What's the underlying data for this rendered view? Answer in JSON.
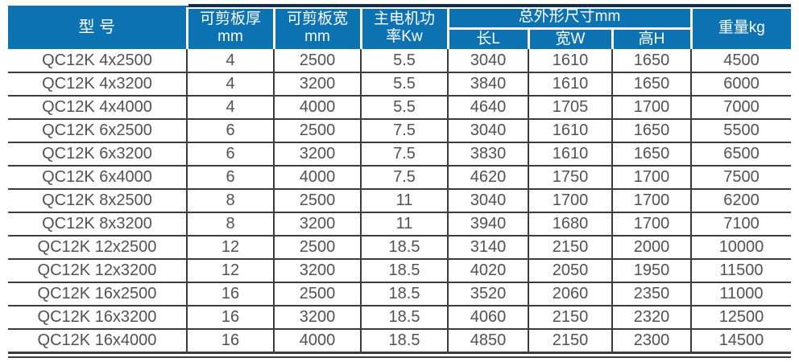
{
  "chart_data": {
    "type": "table",
    "header": {
      "model": "型 号",
      "thickness_l1": "可剪板厚",
      "thickness_l2": "mm",
      "width_l1": "可剪板宽",
      "width_l2": "mm",
      "power_l1": "主电机功",
      "power_l2": "率Kw",
      "dims_group": "总外形尺寸mm",
      "dim_length": "长L",
      "dim_width": "宽W",
      "dim_height": "高H",
      "weight": "重量kg"
    },
    "columns": [
      "型 号",
      "可剪板厚mm",
      "可剪板宽mm",
      "主电机功率Kw",
      "长L",
      "宽W",
      "高H",
      "重量kg"
    ],
    "rows": [
      [
        "QC12K 4x2500",
        "4",
        "2500",
        "5.5",
        "3040",
        "1610",
        "1650",
        "4500"
      ],
      [
        "QC12K 4x3200",
        "4",
        "3200",
        "5.5",
        "3840",
        "1610",
        "1650",
        "6000"
      ],
      [
        "QC12K 4x4000",
        "4",
        "4000",
        "5.5",
        "4640",
        "1705",
        "1700",
        "7000"
      ],
      [
        "QC12K 6x2500",
        "6",
        "2500",
        "7.5",
        "3040",
        "1610",
        "1650",
        "5500"
      ],
      [
        "QC12K 6x3200",
        "6",
        "3200",
        "7.5",
        "3830",
        "1610",
        "1650",
        "6500"
      ],
      [
        "QC12K 6x4000",
        "6",
        "4000",
        "7.5",
        "4620",
        "1750",
        "1700",
        "7500"
      ],
      [
        "QC12K 8x2500",
        "8",
        "2500",
        "11",
        "3040",
        "1700",
        "1700",
        "6200"
      ],
      [
        "QC12K 8x3200",
        "8",
        "3200",
        "11",
        "3940",
        "1680",
        "1700",
        "7100"
      ],
      [
        "QC12K 12x2500",
        "12",
        "2500",
        "18.5",
        "3140",
        "2150",
        "2000",
        "10000"
      ],
      [
        "QC12K 12x3200",
        "12",
        "3200",
        "18.5",
        "4020",
        "2050",
        "1950",
        "11500"
      ],
      [
        "QC12K 16x2500",
        "16",
        "2500",
        "18.5",
        "3520",
        "2060",
        "2350",
        "11000"
      ],
      [
        "QC12K 16x3200",
        "16",
        "3200",
        "18.5",
        "4060",
        "2150",
        "2320",
        "12500"
      ],
      [
        "QC12K 16x4000",
        "16",
        "4000",
        "18.5",
        "4850",
        "2150",
        "2300",
        "14500"
      ]
    ]
  },
  "colors": {
    "header_bg": "#0d72b2",
    "header_text": "#ffffff",
    "header_top_rule": "#162c46",
    "body_text": "#515256",
    "grid_line": "#3c3c3c",
    "background": "#ffffff"
  }
}
